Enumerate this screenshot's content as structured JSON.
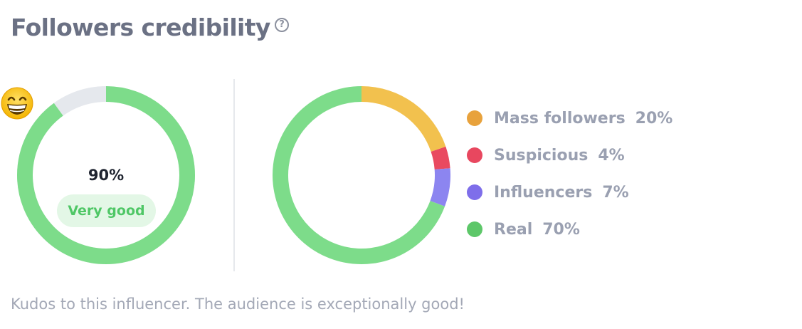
{
  "header": {
    "title": "Followers credibility",
    "help_glyph": "?"
  },
  "gauge": {
    "value": 90,
    "value_label": "90%",
    "rating": "Very good",
    "emoji": "grinning-face-icon",
    "color": "#7ddc8a",
    "track_color": "#e5e8ed"
  },
  "chart_data": {
    "type": "pie",
    "categories": [
      "Mass followers",
      "Suspicious",
      "Influencers",
      "Real"
    ],
    "values": [
      20,
      4,
      7,
      70
    ],
    "series_colors": [
      "#f2c14e",
      "#e94a60",
      "#8c85f0",
      "#7ddc8a"
    ],
    "legend_position": "right"
  },
  "legend": {
    "items": [
      {
        "label": "Mass followers",
        "percent": "20%",
        "color": "#e8a23c"
      },
      {
        "label": "Suspicious",
        "percent": "4%",
        "color": "#e8475f"
      },
      {
        "label": "Influencers",
        "percent": "7%",
        "color": "#7e6eea"
      },
      {
        "label": "Real",
        "percent": "70%",
        "color": "#5dc769"
      }
    ]
  },
  "footer": {
    "text": "Kudos to this influencer. The audience is exceptionally good!"
  }
}
